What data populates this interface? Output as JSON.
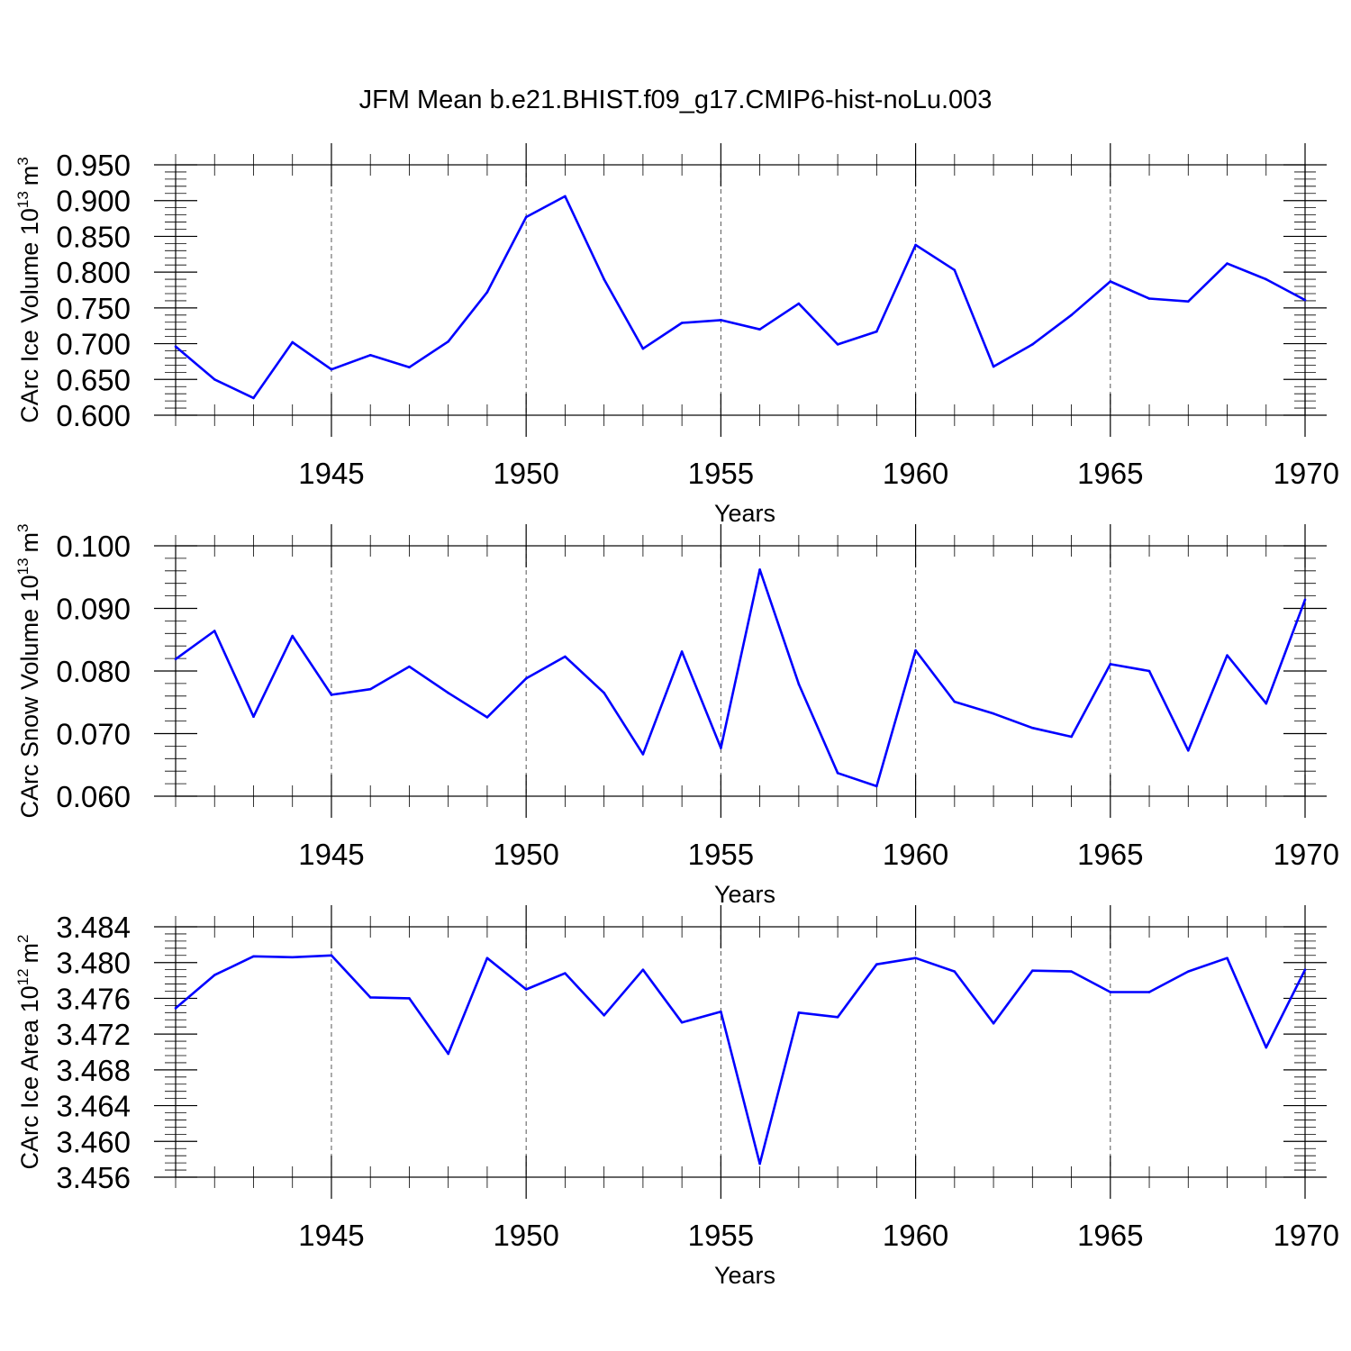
{
  "chart_data": {
    "type": "line",
    "title": "JFM Mean b.e21.BHIST.f09_g17.CMIP6-hist-noLu.003",
    "line_color": "#0000ff",
    "panels": [
      {
        "ylabel": "CArc Ice Volume 10",
        "ylabel_exp": "13",
        "ylabel_unit": "m",
        "ylabel_unit_exp": "3",
        "xlabel": "Years",
        "xlim": [
          1941,
          1970
        ],
        "ylim": [
          0.6,
          0.95
        ],
        "xticks": [
          "1945",
          "1950",
          "1955",
          "1960",
          "1965",
          "1970"
        ],
        "yticks": [
          "0.600",
          "0.650",
          "0.700",
          "0.750",
          "0.800",
          "0.850",
          "0.900",
          "0.950"
        ],
        "x": [
          1941,
          1942,
          1943,
          1944,
          1945,
          1946,
          1947,
          1948,
          1949,
          1950,
          1951,
          1952,
          1953,
          1954,
          1955,
          1956,
          1957,
          1958,
          1959,
          1960,
          1961,
          1962,
          1963,
          1964,
          1965,
          1966,
          1967,
          1968,
          1969,
          1970
        ],
        "values": [
          0.696,
          0.65,
          0.624,
          0.702,
          0.664,
          0.684,
          0.667,
          0.703,
          0.772,
          0.877,
          0.906,
          0.79,
          0.693,
          0.729,
          0.733,
          0.72,
          0.756,
          0.699,
          0.717,
          0.838,
          0.803,
          0.668,
          0.699,
          0.74,
          0.787,
          0.763,
          0.759,
          0.812,
          0.79,
          0.761
        ]
      },
      {
        "ylabel": "CArc Snow Volume 10",
        "ylabel_exp": "13",
        "ylabel_unit": "m",
        "ylabel_unit_exp": "3",
        "xlabel": "Years",
        "xlim": [
          1941,
          1970
        ],
        "ylim": [
          0.06,
          0.1
        ],
        "xticks": [
          "1945",
          "1950",
          "1955",
          "1960",
          "1965",
          "1970"
        ],
        "yticks": [
          "0.060",
          "0.070",
          "0.080",
          "0.090",
          "0.100"
        ],
        "x": [
          1941,
          1942,
          1943,
          1944,
          1945,
          1946,
          1947,
          1948,
          1949,
          1950,
          1951,
          1952,
          1953,
          1954,
          1955,
          1956,
          1957,
          1958,
          1959,
          1960,
          1961,
          1962,
          1963,
          1964,
          1965,
          1966,
          1967,
          1968,
          1969,
          1970
        ],
        "values": [
          0.0819,
          0.0864,
          0.0727,
          0.0856,
          0.0762,
          0.0771,
          0.0807,
          0.0765,
          0.0726,
          0.0788,
          0.0823,
          0.0765,
          0.0667,
          0.0831,
          0.0677,
          0.0962,
          0.0779,
          0.0637,
          0.0616,
          0.0833,
          0.0751,
          0.0732,
          0.0709,
          0.0695,
          0.0811,
          0.08,
          0.0673,
          0.0825,
          0.0748,
          0.0914
        ]
      },
      {
        "ylabel": "CArc Ice Area 10",
        "ylabel_exp": "12",
        "ylabel_unit": "m",
        "ylabel_unit_exp": "2",
        "xlabel": "Years",
        "xlim": [
          1941,
          1970
        ],
        "ylim": [
          3.456,
          3.484
        ],
        "xticks": [
          "1945",
          "1950",
          "1955",
          "1960",
          "1965",
          "1970"
        ],
        "yticks": [
          "3.456",
          "3.460",
          "3.464",
          "3.468",
          "3.472",
          "3.476",
          "3.480",
          "3.484"
        ],
        "x": [
          1941,
          1942,
          1943,
          1944,
          1945,
          1946,
          1947,
          1948,
          1949,
          1950,
          1951,
          1952,
          1953,
          1954,
          1955,
          1956,
          1957,
          1958,
          1959,
          1960,
          1961,
          1962,
          1963,
          1964,
          1965,
          1966,
          1967,
          1968,
          1969,
          1970
        ],
        "values": [
          3.4749,
          3.4786,
          3.4807,
          3.4806,
          3.4808,
          3.4761,
          3.476,
          3.4698,
          3.4805,
          3.477,
          3.4788,
          3.4741,
          3.4792,
          3.4733,
          3.4745,
          3.4575,
          3.4744,
          3.4739,
          3.4798,
          3.4805,
          3.479,
          3.4732,
          3.4791,
          3.479,
          3.4767,
          3.4767,
          3.479,
          3.4805,
          3.4705,
          3.4792
        ]
      }
    ]
  }
}
